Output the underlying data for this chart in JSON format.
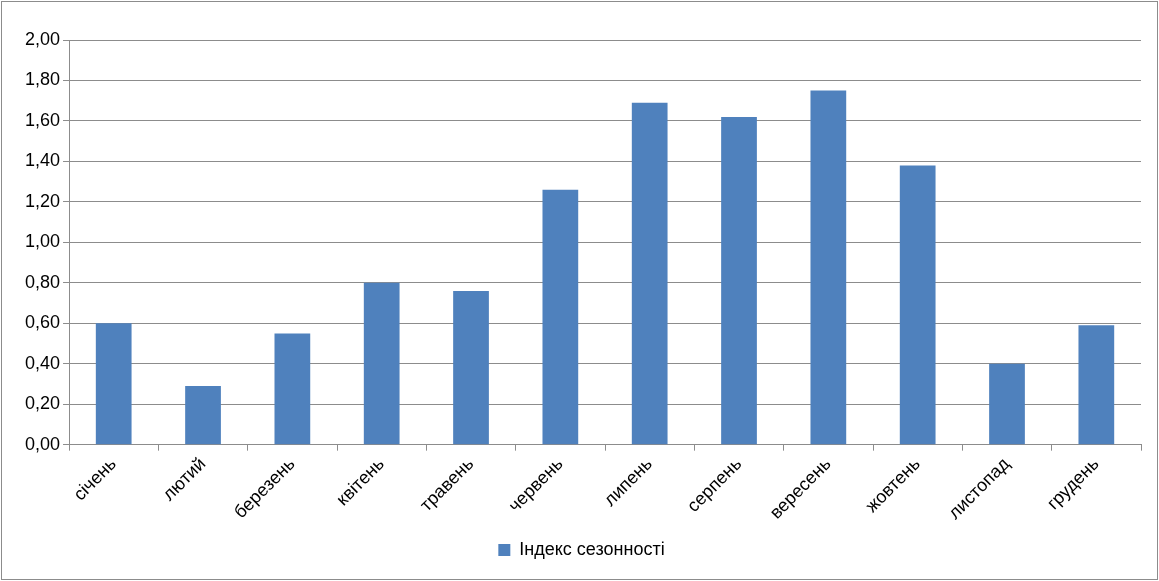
{
  "chart_data": {
    "type": "bar",
    "categories": [
      "січень",
      "лютий",
      "березень",
      "квітень",
      "травень",
      "червень",
      "липень",
      "серпень",
      "вересень",
      "жовтень",
      "листопад",
      "грудень"
    ],
    "series": [
      {
        "name": "Індекс сезонності",
        "color": "#4f81bd",
        "values": [
          0.6,
          0.29,
          0.55,
          0.8,
          0.76,
          1.26,
          1.69,
          1.62,
          1.75,
          1.38,
          0.4,
          0.59
        ]
      }
    ],
    "ylim": [
      0,
      2
    ],
    "yticks": [
      {
        "value": 0,
        "label": "0,00"
      },
      {
        "value": 0.2,
        "label": "0,20"
      },
      {
        "value": 0.4,
        "label": "0,40"
      },
      {
        "value": 0.6,
        "label": "0,60"
      },
      {
        "value": 0.8,
        "label": "0,80"
      },
      {
        "value": 1,
        "label": "1,00"
      },
      {
        "value": 1.2,
        "label": "1,20"
      },
      {
        "value": 1.4,
        "label": "1,40"
      },
      {
        "value": 1.6,
        "label": "1,60"
      },
      {
        "value": 1.8,
        "label": "1,80"
      },
      {
        "value": 2,
        "label": "2,00"
      }
    ],
    "grid": "y",
    "legend": "bottom"
  }
}
